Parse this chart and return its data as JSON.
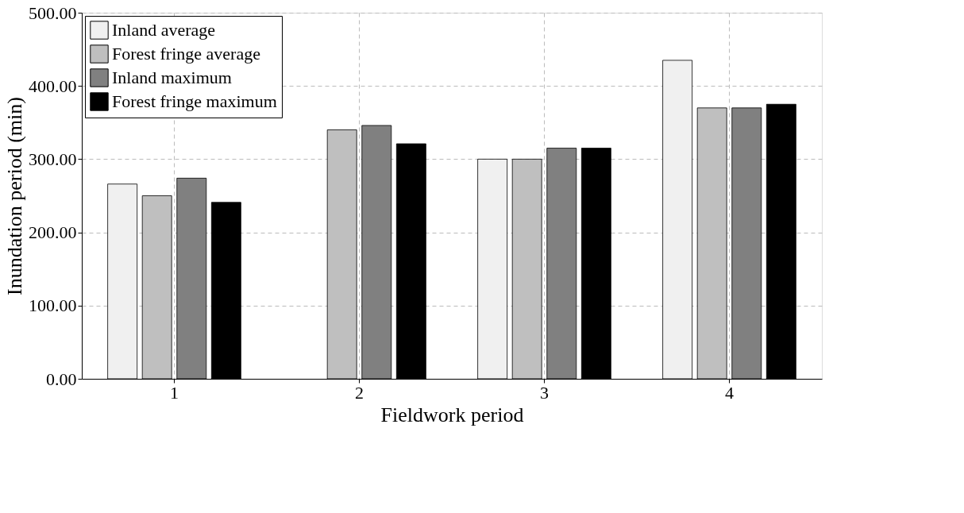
{
  "chart_data": {
    "type": "bar",
    "xlabel": "Fieldwork period",
    "ylabel": "Inundation period (min)",
    "categories": [
      "1",
      "2",
      "3",
      "4"
    ],
    "series": [
      {
        "name": "Inland average",
        "color": "#f0f0f0",
        "values": [
          266,
          null,
          300,
          435
        ]
      },
      {
        "name": "Forest fringe average",
        "color": "#bfbfbf",
        "values": [
          250,
          340,
          300,
          370
        ]
      },
      {
        "name": "Inland maximum",
        "color": "#808080",
        "values": [
          274,
          346,
          315,
          370
        ]
      },
      {
        "name": "Forest fringe maximum",
        "color": "#000000",
        "values": [
          241,
          321,
          315,
          375
        ]
      }
    ],
    "ylim": [
      0,
      500
    ],
    "yticks": [
      {
        "value": 0,
        "label": "0.00"
      },
      {
        "value": 100,
        "label": "100.00"
      },
      {
        "value": 200,
        "label": "200.00"
      },
      {
        "value": 300,
        "label": "300.00"
      },
      {
        "value": 400,
        "label": "400.00"
      },
      {
        "value": 500,
        "label": "500.00"
      }
    ],
    "grid": true,
    "legend": "top left"
  }
}
